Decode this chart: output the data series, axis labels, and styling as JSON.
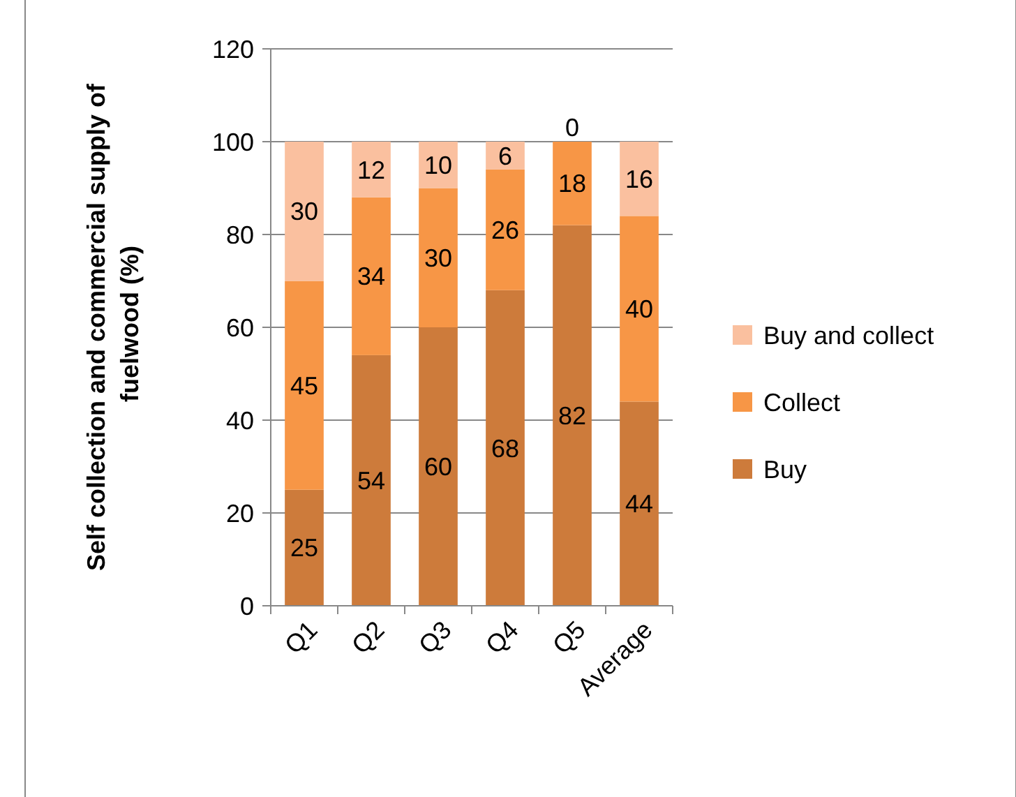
{
  "chart_data": {
    "type": "bar",
    "stacked": true,
    "ylabel": "Self collection and commercial supply of  fuelwood (%)",
    "categories": [
      "Q1",
      "Q2",
      "Q3",
      "Q4",
      "Q5",
      "Average"
    ],
    "series": [
      {
        "name": "Buy",
        "color": "#cd7b3b",
        "values": [
          25,
          54,
          60,
          68,
          82,
          44
        ]
      },
      {
        "name": "Collect",
        "color": "#f79646",
        "values": [
          45,
          34,
          30,
          26,
          18,
          40
        ]
      },
      {
        "name": "Buy and collect",
        "color": "#fac09f",
        "values": [
          30,
          12,
          10,
          6,
          0,
          16
        ]
      }
    ],
    "ylim": [
      0,
      120
    ],
    "yticks": [
      0,
      20,
      40,
      60,
      80,
      100,
      120
    ],
    "grid": "y",
    "legend": "right",
    "data_labels": true
  }
}
